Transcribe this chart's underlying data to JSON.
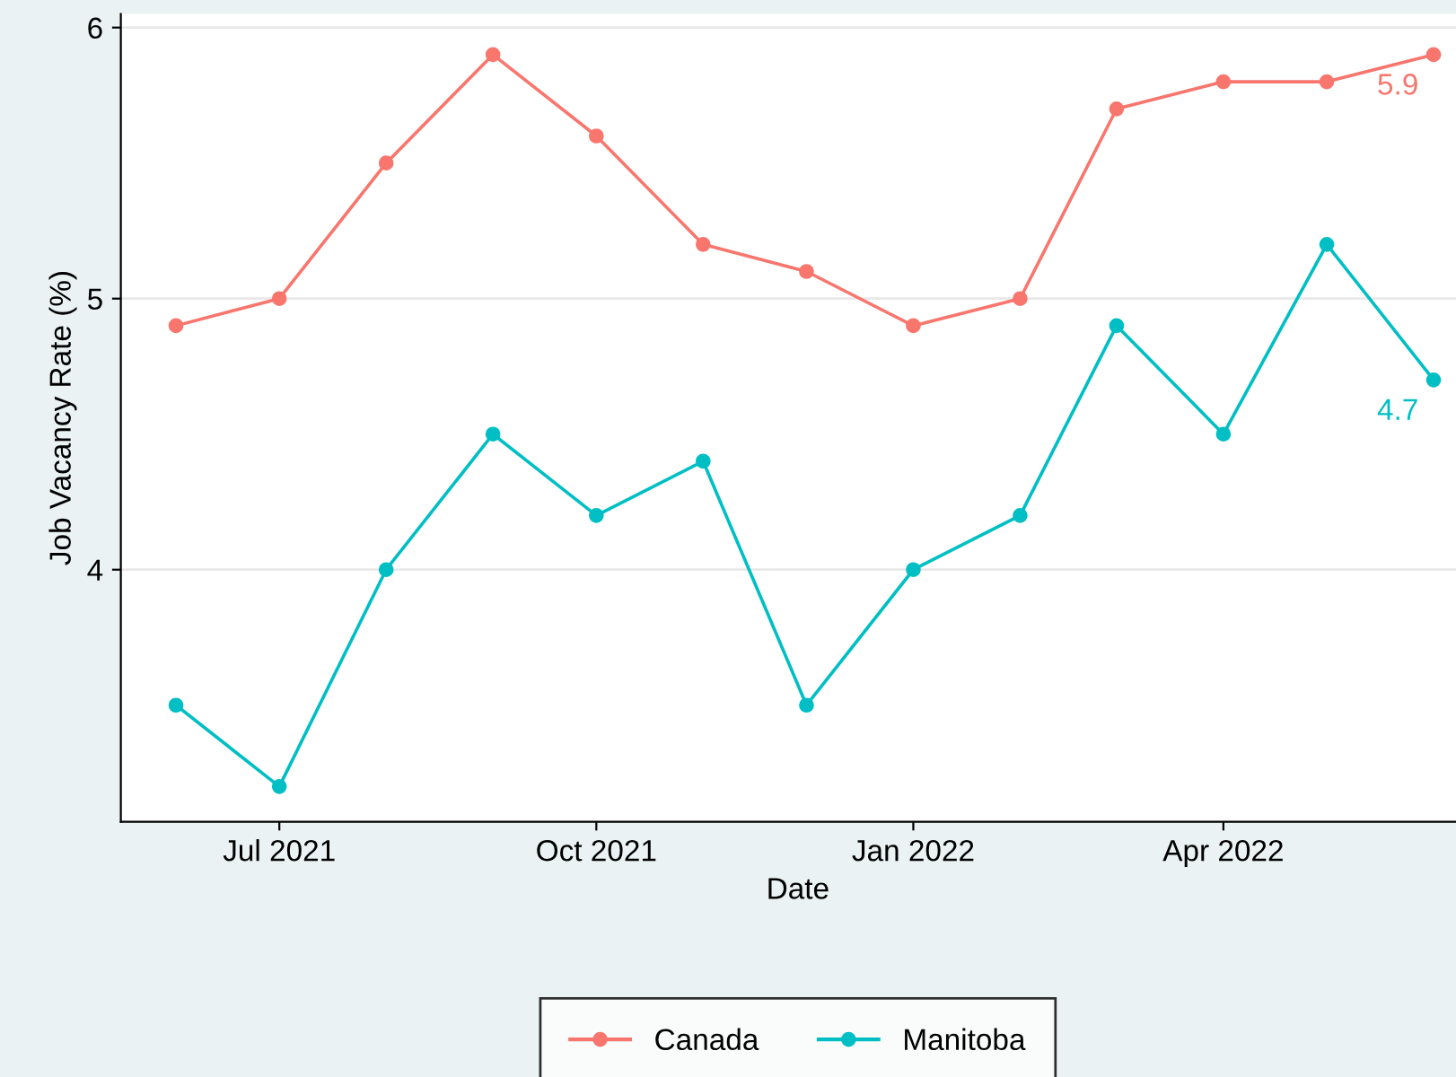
{
  "chart_data": {
    "type": "line",
    "xlabel": "Date",
    "ylabel": "Job Vacancy Rate (%)",
    "x": [
      "2021-06",
      "2021-07",
      "2021-08",
      "2021-09",
      "2021-10",
      "2021-11",
      "2021-12",
      "2022-01",
      "2022-02",
      "2022-03",
      "2022-04",
      "2022-05",
      "2022-06"
    ],
    "series": [
      {
        "name": "Canada",
        "color": "#f8766d",
        "values": [
          4.9,
          5.0,
          5.5,
          5.9,
          5.6,
          5.2,
          5.1,
          4.9,
          5.0,
          5.7,
          5.8,
          5.8,
          5.9
        ]
      },
      {
        "name": "Manitoba",
        "color": "#00bfc4",
        "values": [
          3.5,
          3.2,
          4.0,
          4.5,
          4.2,
          4.4,
          3.5,
          4.0,
          4.2,
          4.9,
          4.5,
          5.2,
          4.7
        ]
      }
    ],
    "annotations": [
      {
        "text": "5.9",
        "x": "2022-06",
        "y": 5.9
      },
      {
        "text": "4.7",
        "x": "2022-06",
        "y": 4.7
      }
    ],
    "xlim": [
      "2021-05-16",
      "2022-06-13"
    ],
    "xticks": [
      {
        "value": "2021-07",
        "label": "Jul 2021"
      },
      {
        "value": "2021-10",
        "label": "Oct 2021"
      },
      {
        "value": "2022-01",
        "label": "Jan 2022"
      },
      {
        "value": "2022-04",
        "label": "Apr 2022"
      }
    ],
    "ylim": [
      3.07,
      6.05
    ],
    "yticks": [
      4,
      5,
      6
    ],
    "grid": "y",
    "legend": "bottom",
    "marker": "circle",
    "line_style": "solid"
  }
}
